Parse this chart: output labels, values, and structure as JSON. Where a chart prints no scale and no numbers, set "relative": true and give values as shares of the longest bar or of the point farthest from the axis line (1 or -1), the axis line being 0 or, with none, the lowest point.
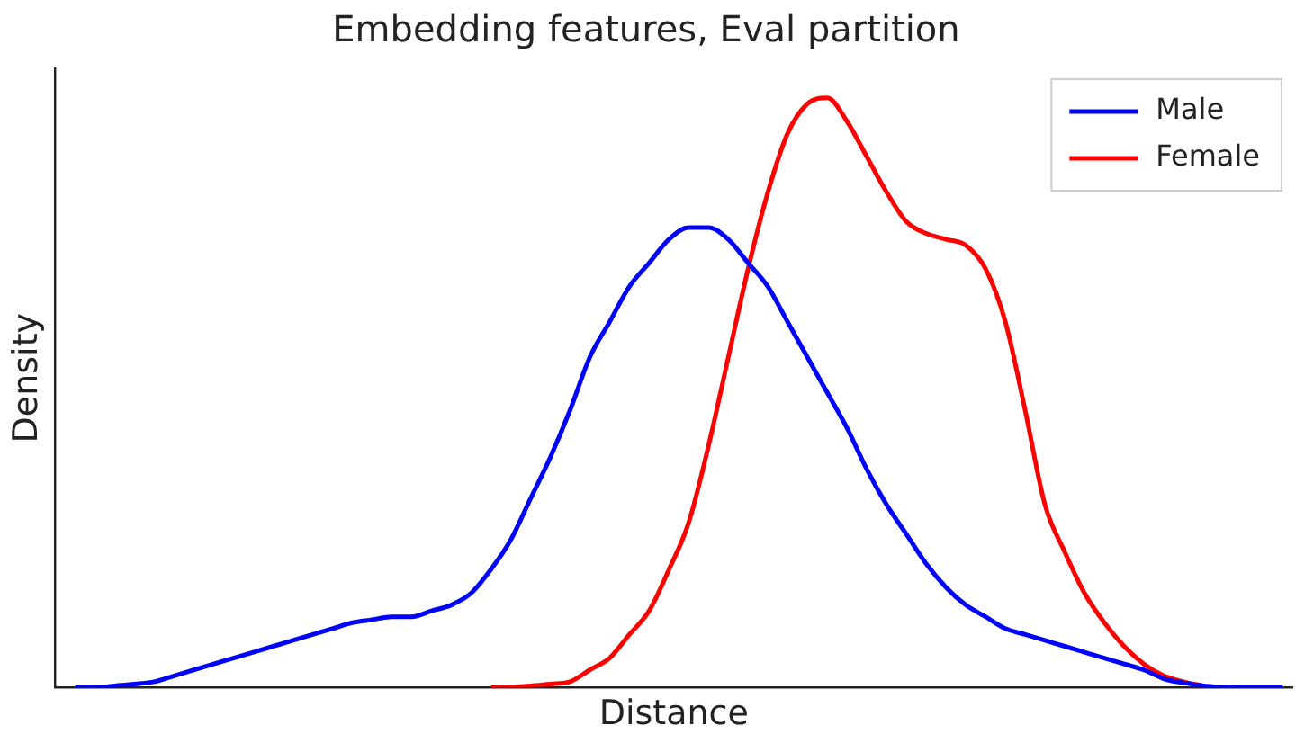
{
  "chart_data": {
    "type": "line",
    "title": "Embedding features, Eval partition",
    "xlabel": "Distance",
    "ylabel": "Density",
    "relative": true,
    "legend": "top right",
    "grid": false,
    "marker": "none",
    "line_style": "solid",
    "categories": [
      null,
      null,
      null,
      null,
      null,
      null,
      null,
      null,
      null,
      null,
      null,
      null,
      null,
      null,
      null,
      null,
      null,
      null,
      null,
      null,
      null,
      null,
      null,
      null,
      null,
      null,
      null,
      null,
      null,
      null,
      null,
      null,
      null,
      null,
      null,
      null,
      null,
      null,
      null,
      null,
      null,
      null,
      null,
      null,
      null,
      null,
      null,
      null,
      null,
      null,
      null,
      null,
      null,
      null,
      null,
      null,
      null,
      null,
      null,
      null,
      null,
      null
    ],
    "series": [
      {
        "name": "Male",
        "color": "#0000ff",
        "values": [
          0,
          0,
          0.003,
          0.006,
          0.01,
          0.02,
          0.03,
          0.04,
          0.05,
          0.06,
          0.07,
          0.08,
          0.09,
          0.1,
          0.11,
          0.115,
          0.12,
          0.12,
          0.13,
          0.14,
          0.16,
          0.2,
          0.25,
          0.32,
          0.39,
          0.47,
          0.56,
          0.62,
          0.68,
          0.72,
          0.76,
          0.78,
          0.78,
          0.76,
          0.72,
          0.68,
          0.62,
          0.56,
          0.5,
          0.44,
          0.37,
          0.31,
          0.26,
          0.21,
          0.17,
          0.14,
          0.12,
          0.1,
          0.09,
          0.08,
          0.07,
          0.06,
          0.05,
          0.04,
          0.03,
          0.015,
          0.008,
          0.003,
          0.001,
          0,
          0,
          0
        ]
      },
      {
        "name": "Female",
        "color": "#ff0000",
        "values": [
          null,
          null,
          null,
          null,
          null,
          null,
          null,
          null,
          null,
          null,
          null,
          null,
          null,
          null,
          null,
          null,
          null,
          null,
          null,
          null,
          null,
          0,
          0.001,
          0.003,
          0.006,
          0.01,
          0.03,
          0.05,
          0.09,
          0.13,
          0.2,
          0.28,
          0.41,
          0.56,
          0.71,
          0.84,
          0.94,
          0.99,
          1,
          0.96,
          0.9,
          0.84,
          0.79,
          0.77,
          0.76,
          0.75,
          0.71,
          0.62,
          0.47,
          0.31,
          0.23,
          0.16,
          0.11,
          0.07,
          0.04,
          0.02,
          0.01,
          0.003,
          null,
          null,
          null,
          null
        ]
      }
    ]
  }
}
